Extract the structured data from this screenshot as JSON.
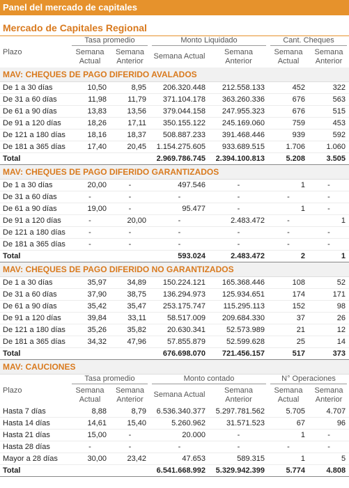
{
  "header": {
    "title": "Panel del mercado de capitales",
    "subtitle": "Mercado de Capitales Regional"
  },
  "cheques": {
    "columns": {
      "plazo": "Plazo",
      "groups": [
        "Tasa promedio",
        "Monto Liquidado",
        "Cant. Cheques"
      ],
      "sub": [
        "Semana Actual",
        "Semana Anterior",
        "Semana Actual",
        "Semana Anterior",
        "Semana Actual",
        "Semana Anterior"
      ]
    },
    "sections": [
      {
        "title": "MAV: CHEQUES DE PAGO DIFERIDO AVALADOS",
        "rows": [
          [
            "De 1 a 30 días",
            "10,50",
            "8,95",
            "206.320.448",
            "212.558.133",
            "452",
            "322"
          ],
          [
            "De 31 a 60 días",
            "11,98",
            "11,79",
            "371.104.178",
            "363.260.336",
            "676",
            "563"
          ],
          [
            "De 61 a 90 días",
            "13,83",
            "13,56",
            "379.044.158",
            "247.955.323",
            "676",
            "515"
          ],
          [
            "De 91 a 120 días",
            "18,26",
            "17,11",
            "350.155.122",
            "245.169.060",
            "759",
            "453"
          ],
          [
            "De 121 a 180 días",
            "18,16",
            "18,37",
            "508.887.233",
            "391.468.446",
            "939",
            "592"
          ],
          [
            "De 181 a 365 días",
            "17,40",
            "20,45",
            "1.154.275.605",
            "933.689.515",
            "1.706",
            "1.060"
          ]
        ],
        "total": {
          "label": "Total",
          "values": [
            "2.969.786.745",
            "2.394.100.813",
            "5.208",
            "3.505"
          ]
        }
      },
      {
        "title": "MAV: CHEQUES DE PAGO DIFERIDO GARANTIZADOS",
        "rows": [
          [
            "De 1 a 30 días",
            "20,00",
            "-",
            "497.546",
            "-",
            "1",
            "-"
          ],
          [
            "De 31 a 60 días",
            "-",
            "-",
            "-",
            "-",
            "-",
            "-"
          ],
          [
            "De 61 a 90 días",
            "19,00",
            "-",
            "95.477",
            "-",
            "1",
            "-"
          ],
          [
            "De 91 a 120 días",
            "-",
            "20,00",
            "-",
            "2.483.472",
            "-",
            "1"
          ],
          [
            "De 121 a 180 días",
            "-",
            "-",
            "-",
            "-",
            "-",
            "-"
          ],
          [
            "De 181 a 365 días",
            "-",
            "-",
            "-",
            "-",
            "-",
            "-"
          ]
        ],
        "total": {
          "label": "Total",
          "values": [
            "593.024",
            "2.483.472",
            "2",
            "1"
          ]
        }
      },
      {
        "title": "MAV: CHEQUES DE PAGO DIFERIDO NO GARANTIZADOS",
        "rows": [
          [
            "De 1 a 30 días",
            "35,97",
            "34,89",
            "150.224.121",
            "165.368.446",
            "108",
            "52"
          ],
          [
            "De 31 a 60 días",
            "37,90",
            "38,75",
            "136.294.973",
            "125.934.651",
            "174",
            "171"
          ],
          [
            "De 61 a 90 días",
            "35,42",
            "35,47",
            "253.175.747",
            "115.295.113",
            "152",
            "98"
          ],
          [
            "De 91 a 120 días",
            "39,84",
            "33,11",
            "58.517.009",
            "209.684.330",
            "37",
            "26"
          ],
          [
            "De 121 a 180 días",
            "35,26",
            "35,82",
            "20.630.341",
            "52.573.989",
            "21",
            "12"
          ],
          [
            "De 181 a 365 días",
            "34,32",
            "47,96",
            "57.855.879",
            "52.599.628",
            "25",
            "14"
          ]
        ],
        "total": {
          "label": "Total",
          "values": [
            "676.698.070",
            "721.456.157",
            "517",
            "373"
          ]
        }
      }
    ]
  },
  "cauciones": {
    "title": "MAV: CAUCIONES",
    "columns": {
      "plazo": "Plazo",
      "groups": [
        "Tasa promedio",
        "Monto contado",
        "N° Operaciones"
      ],
      "sub": [
        "Semana Actual",
        "Semana Anterior",
        "Semana Actual",
        "Semana Anterior",
        "Semana Actual",
        "Semana Anterior"
      ]
    },
    "rows": [
      [
        "Hasta 7 días",
        "8,88",
        "8,79",
        "6.536.340.377",
        "5.297.781.562",
        "5.705",
        "4.707"
      ],
      [
        "Hasta 14 días",
        "14,61",
        "15,40",
        "5.260.962",
        "31.571.523",
        "67",
        "96"
      ],
      [
        "Hasta 21 días",
        "15,00",
        "-",
        "20.000",
        "-",
        "1",
        "-"
      ],
      [
        "Hasta 28 días",
        "-",
        "-",
        "-",
        "-",
        "-",
        "-"
      ],
      [
        "Mayor a 28 días",
        "30,00",
        "23,42",
        "47.653",
        "589.315",
        "1",
        "5"
      ]
    ],
    "total": {
      "label": "Total",
      "values": [
        "6.541.668.992",
        "5.329.942.399",
        "5.774",
        "4.808"
      ]
    }
  }
}
